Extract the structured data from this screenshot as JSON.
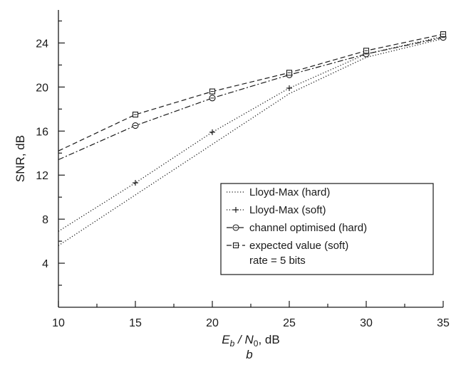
{
  "chart_data": {
    "type": "line",
    "title": "",
    "xlabel": {
      "main": "E",
      "sub_b": "b",
      "slash": " / ",
      "main2": "N",
      "sub_0": "0",
      "unit": ", dB"
    },
    "ylabel": "SNR, dB",
    "caption": "b",
    "xlim": [
      10,
      35
    ],
    "ylim": [
      0,
      27
    ],
    "xticks": [
      10,
      15,
      20,
      25,
      30,
      35
    ],
    "yticks": [
      4,
      8,
      12,
      16,
      20,
      24
    ],
    "grid": false,
    "legend_position": "bottom-right",
    "legend_note": "rate = 5 bits",
    "series": [
      {
        "name": "Lloyd-Max (hard)",
        "style": "dotted",
        "marker": "none",
        "x": [
          10,
          15,
          20,
          25,
          30,
          35
        ],
        "y": [
          5.6,
          10.2,
          14.8,
          19.4,
          22.7,
          24.4
        ]
      },
      {
        "name": "Lloyd-Max (soft)",
        "style": "dotted",
        "marker": "plus",
        "x": [
          10,
          15,
          20,
          25,
          30,
          35
        ],
        "y": [
          6.9,
          11.3,
          15.9,
          19.9,
          23.0,
          24.6
        ]
      },
      {
        "name": "channel optimised (hard)",
        "style": "dashdot",
        "marker": "circle",
        "x": [
          10,
          15,
          20,
          25,
          30,
          35
        ],
        "y": [
          13.4,
          16.5,
          19.0,
          21.1,
          23.0,
          24.5
        ]
      },
      {
        "name": "expected value (soft)",
        "style": "dashed",
        "marker": "square",
        "x": [
          10,
          15,
          20,
          25,
          30,
          35
        ],
        "y": [
          14.2,
          17.5,
          19.6,
          21.3,
          23.3,
          24.8
        ]
      }
    ]
  }
}
